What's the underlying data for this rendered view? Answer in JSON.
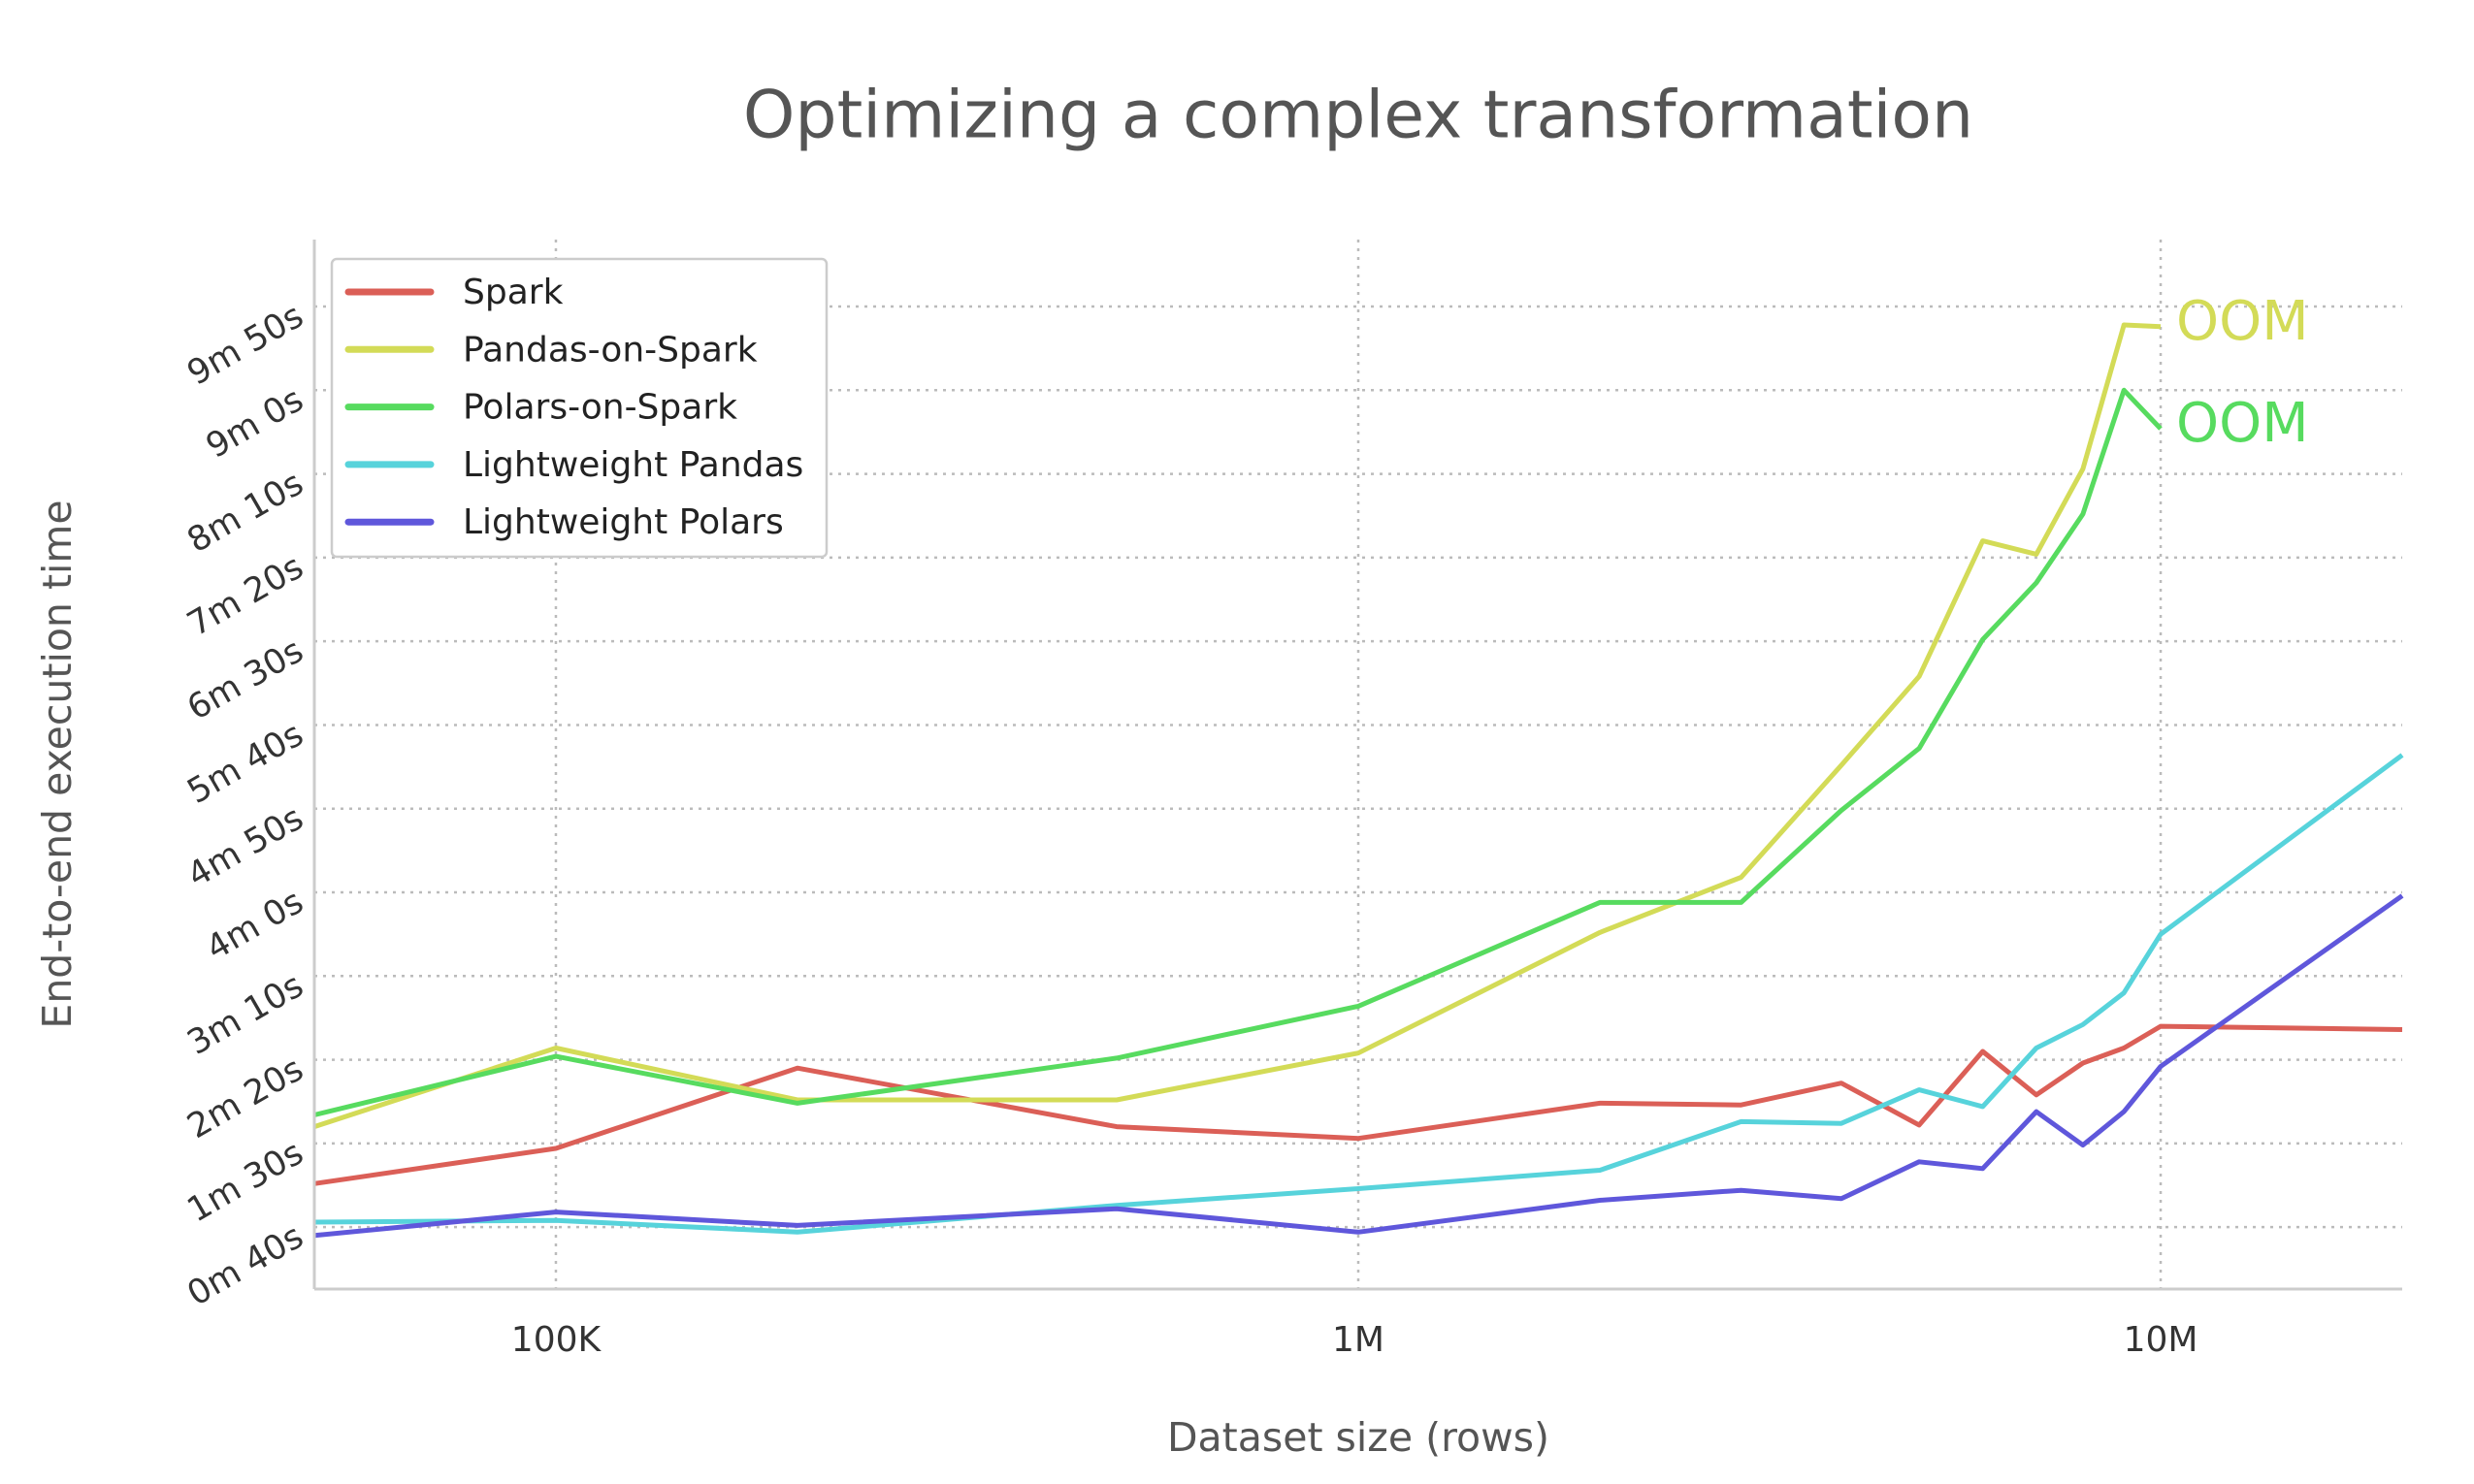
{
  "chart_data": {
    "type": "line",
    "title": "Optimizing a complex transformation",
    "x_label": "Dataset size (rows)",
    "y_label": "End-to-end execution time",
    "x_scale": "log",
    "grid": true,
    "legend": "upper left",
    "x": [
      50000,
      100000,
      200000,
      500000,
      1000000,
      2000000,
      3000000,
      4000000,
      5000000,
      6000000,
      7000000,
      8000000,
      9000000,
      10000000,
      20000000
    ],
    "series": [
      {
        "name": "Spark",
        "color": "#db5f57",
        "values": [
          66,
          87,
          135,
          100,
          93,
          114,
          113,
          126,
          101,
          145,
          119,
          138,
          147,
          160,
          158
        ]
      },
      {
        "name": "Pandas-on-Spark",
        "color": "#d3db57",
        "values": [
          100,
          147,
          116,
          116,
          144,
          216,
          249,
          316,
          369,
          450,
          442,
          493,
          579,
          578,
          null
        ],
        "end_label": "OOM"
      },
      {
        "name": "Polars-on-Spark",
        "color": "#57db5f",
        "values": [
          107,
          142,
          114,
          141,
          172,
          234,
          234,
          289,
          326,
          391,
          425,
          466,
          540,
          517,
          null
        ],
        "end_label": "OOM"
      },
      {
        "name": "Lightweight Pandas",
        "color": "#57d3db",
        "values": [
          43,
          44,
          37,
          53,
          63,
          74,
          103,
          102,
          122,
          112,
          147,
          161,
          180,
          215,
          322
        ]
      },
      {
        "name": "Lightweight Polars",
        "color": "#5f57db",
        "values": [
          35,
          49,
          41,
          51,
          37,
          56,
          62,
          57,
          79,
          75,
          109,
          89,
          109,
          136,
          238
        ]
      }
    ],
    "xlim": [
      50000,
      20000000
    ],
    "xticks": [
      {
        "value": 100000,
        "label": "100K"
      },
      {
        "value": 1000000,
        "label": "1M"
      },
      {
        "value": 10000000,
        "label": "10M"
      }
    ],
    "ylim": [
      3,
      630
    ],
    "yticks": [
      {
        "value": 40,
        "label": "0m 40s"
      },
      {
        "value": 90,
        "label": "1m 30s"
      },
      {
        "value": 140,
        "label": "2m 20s"
      },
      {
        "value": 190,
        "label": "3m 10s"
      },
      {
        "value": 240,
        "label": "4m 0s"
      },
      {
        "value": 290,
        "label": "4m 50s"
      },
      {
        "value": 340,
        "label": "5m 40s"
      },
      {
        "value": 390,
        "label": "6m 30s"
      },
      {
        "value": 440,
        "label": "7m 20s"
      },
      {
        "value": 490,
        "label": "8m 10s"
      },
      {
        "value": 540,
        "label": "9m 0s"
      },
      {
        "value": 590,
        "label": "9m 50s"
      }
    ]
  }
}
